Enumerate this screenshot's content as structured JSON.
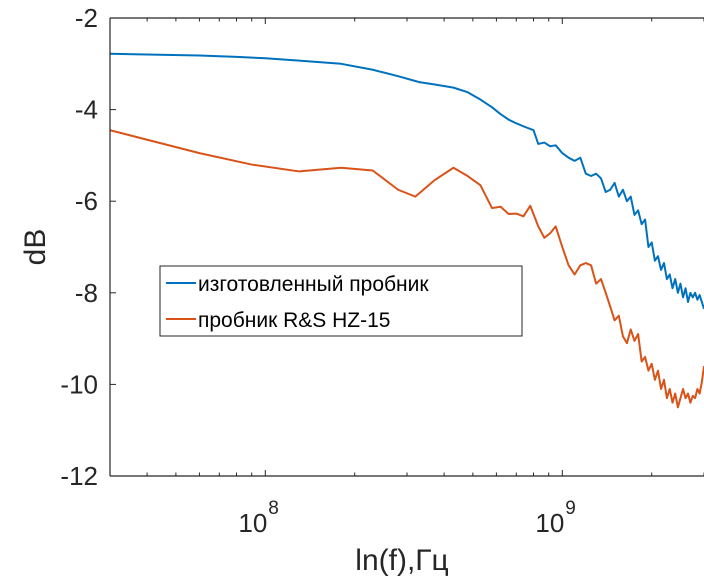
{
  "chart_data": {
    "type": "line",
    "xscale": "log",
    "xlabel": "ln(f),Гц",
    "ylabel": "dB",
    "xlim": [
      30000000,
      3000000000
    ],
    "ylim": [
      -12,
      -2
    ],
    "yticks": [
      -2,
      -4,
      -6,
      -8,
      -10,
      -12
    ],
    "xticks": [
      {
        "value": 100000000,
        "base": "10",
        "exp": "8"
      },
      {
        "value": 1000000000,
        "base": "10",
        "exp": "9"
      }
    ],
    "legend": {
      "position": "center-left"
    },
    "series": [
      {
        "name": "изготовленный пробник",
        "color": "#0072BD",
        "points": [
          [
            30000000,
            -2.78
          ],
          [
            60000000,
            -2.82
          ],
          [
            80000000,
            -2.85
          ],
          [
            100000000,
            -2.88
          ],
          [
            130000000,
            -2.93
          ],
          [
            180000000,
            -3.0
          ],
          [
            230000000,
            -3.13
          ],
          [
            280000000,
            -3.27
          ],
          [
            330000000,
            -3.4
          ],
          [
            370000000,
            -3.45
          ],
          [
            430000000,
            -3.52
          ],
          [
            480000000,
            -3.62
          ],
          [
            530000000,
            -3.78
          ],
          [
            580000000,
            -3.95
          ],
          [
            620000000,
            -4.1
          ],
          [
            660000000,
            -4.22
          ],
          [
            700000000,
            -4.3
          ],
          [
            750000000,
            -4.38
          ],
          [
            800000000,
            -4.45
          ],
          [
            830000000,
            -4.75
          ],
          [
            870000000,
            -4.72
          ],
          [
            910000000,
            -4.8
          ],
          [
            950000000,
            -4.78
          ],
          [
            1000000000,
            -4.95
          ],
          [
            1050000000,
            -5.05
          ],
          [
            1100000000,
            -5.12
          ],
          [
            1150000000,
            -5.05
          ],
          [
            1200000000,
            -5.4
          ],
          [
            1250000000,
            -5.45
          ],
          [
            1300000000,
            -5.4
          ],
          [
            1350000000,
            -5.5
          ],
          [
            1400000000,
            -5.8
          ],
          [
            1450000000,
            -5.75
          ],
          [
            1500000000,
            -5.6
          ],
          [
            1550000000,
            -5.9
          ],
          [
            1600000000,
            -5.75
          ],
          [
            1650000000,
            -6.0
          ],
          [
            1700000000,
            -5.9
          ],
          [
            1750000000,
            -6.3
          ],
          [
            1800000000,
            -6.2
          ],
          [
            1850000000,
            -6.5
          ],
          [
            1900000000,
            -6.4
          ],
          [
            1950000000,
            -7.0
          ],
          [
            2000000000,
            -6.9
          ],
          [
            2050000000,
            -7.3
          ],
          [
            2100000000,
            -7.2
          ],
          [
            2150000000,
            -7.5
          ],
          [
            2200000000,
            -7.35
          ],
          [
            2250000000,
            -7.7
          ],
          [
            2300000000,
            -7.6
          ],
          [
            2350000000,
            -7.9
          ],
          [
            2400000000,
            -7.7
          ],
          [
            2450000000,
            -8.0
          ],
          [
            2500000000,
            -7.8
          ],
          [
            2550000000,
            -8.1
          ],
          [
            2600000000,
            -7.9
          ],
          [
            2650000000,
            -8.2
          ],
          [
            2700000000,
            -8.0
          ],
          [
            2750000000,
            -8.1
          ],
          [
            2800000000,
            -8.0
          ],
          [
            2850000000,
            -8.15
          ],
          [
            2900000000,
            -8.05
          ],
          [
            2950000000,
            -8.2
          ],
          [
            3000000000,
            -8.35
          ]
        ]
      },
      {
        "name": "пробник R&S HZ-15",
        "color": "#D95319",
        "points": [
          [
            30000000,
            -4.45
          ],
          [
            60000000,
            -4.95
          ],
          [
            90000000,
            -5.2
          ],
          [
            130000000,
            -5.35
          ],
          [
            180000000,
            -5.27
          ],
          [
            230000000,
            -5.33
          ],
          [
            280000000,
            -5.75
          ],
          [
            320000000,
            -5.9
          ],
          [
            370000000,
            -5.55
          ],
          [
            430000000,
            -5.27
          ],
          [
            480000000,
            -5.45
          ],
          [
            530000000,
            -5.65
          ],
          [
            580000000,
            -6.15
          ],
          [
            620000000,
            -6.12
          ],
          [
            660000000,
            -6.28
          ],
          [
            700000000,
            -6.27
          ],
          [
            740000000,
            -6.33
          ],
          [
            780000000,
            -6.1
          ],
          [
            830000000,
            -6.55
          ],
          [
            870000000,
            -6.8
          ],
          [
            910000000,
            -6.7
          ],
          [
            950000000,
            -6.55
          ],
          [
            1000000000,
            -7.0
          ],
          [
            1050000000,
            -7.4
          ],
          [
            1100000000,
            -7.6
          ],
          [
            1150000000,
            -7.4
          ],
          [
            1200000000,
            -7.35
          ],
          [
            1250000000,
            -7.4
          ],
          [
            1300000000,
            -7.8
          ],
          [
            1350000000,
            -7.7
          ],
          [
            1400000000,
            -8.0
          ],
          [
            1450000000,
            -8.3
          ],
          [
            1500000000,
            -8.6
          ],
          [
            1550000000,
            -8.5
          ],
          [
            1600000000,
            -8.95
          ],
          [
            1650000000,
            -9.1
          ],
          [
            1700000000,
            -8.8
          ],
          [
            1750000000,
            -9.05
          ],
          [
            1800000000,
            -8.9
          ],
          [
            1850000000,
            -9.5
          ],
          [
            1900000000,
            -9.4
          ],
          [
            1950000000,
            -9.7
          ],
          [
            2000000000,
            -9.55
          ],
          [
            2050000000,
            -9.9
          ],
          [
            2100000000,
            -9.7
          ],
          [
            2150000000,
            -10.1
          ],
          [
            2200000000,
            -9.9
          ],
          [
            2250000000,
            -10.3
          ],
          [
            2300000000,
            -10.1
          ],
          [
            2350000000,
            -10.4
          ],
          [
            2400000000,
            -10.2
          ],
          [
            2450000000,
            -10.5
          ],
          [
            2500000000,
            -10.3
          ],
          [
            2550000000,
            -10.1
          ],
          [
            2600000000,
            -10.3
          ],
          [
            2650000000,
            -10.2
          ],
          [
            2700000000,
            -10.4
          ],
          [
            2750000000,
            -10.25
          ],
          [
            2800000000,
            -10.3
          ],
          [
            2850000000,
            -10.1
          ],
          [
            2900000000,
            -10.2
          ],
          [
            2950000000,
            -9.95
          ],
          [
            3000000000,
            -9.6
          ]
        ]
      }
    ]
  }
}
